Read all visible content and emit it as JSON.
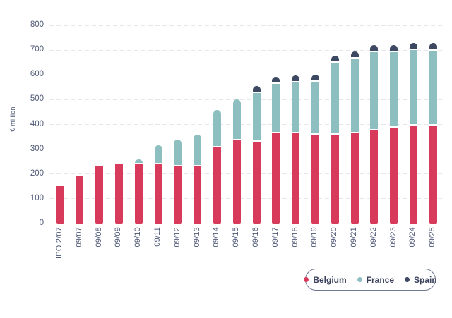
{
  "chart_data": {
    "type": "bar",
    "stacked": true,
    "title": "",
    "xlabel": "",
    "ylabel": "€ million",
    "ylim": [
      0,
      800
    ],
    "yticks": [
      0,
      100,
      200,
      300,
      400,
      500,
      600,
      700,
      800
    ],
    "grid": "horizontal-dashed",
    "legend_position": "bottom-right",
    "categories": [
      "IPO 2/07",
      "09/07",
      "09/08",
      "09/09",
      "09/10",
      "09/11",
      "09/12",
      "09/13",
      "09/14",
      "09/15",
      "09/16",
      "09/17",
      "09/18",
      "09/19",
      "09/20",
      "09/21",
      "09/22",
      "09/23",
      "09/24",
      "09/25"
    ],
    "series": [
      {
        "name": "Belgium",
        "color": "#D83A5B",
        "values": [
          150,
          190,
          232,
          240,
          240,
          238,
          230,
          232,
          308,
          336,
          330,
          365,
          363,
          360,
          358,
          365,
          375,
          388,
          395,
          395
        ]
      },
      {
        "name": "France",
        "color": "#8EBFC0",
        "values": [
          0,
          0,
          0,
          0,
          20,
          77,
          108,
          126,
          150,
          166,
          198,
          200,
          205,
          212,
          292,
          300,
          317,
          303,
          304,
          303
        ]
      },
      {
        "name": "Spain",
        "color": "#3D4963",
        "values": [
          0,
          0,
          0,
          0,
          0,
          0,
          0,
          0,
          0,
          0,
          27,
          28,
          30,
          30,
          28,
          30,
          28,
          29,
          31,
          30
        ]
      }
    ],
    "stack_totals": [
      150,
      190,
      232,
      240,
      260,
      315,
      338,
      358,
      458,
      502,
      555,
      593,
      598,
      602,
      678,
      695,
      720,
      720,
      730,
      728
    ]
  },
  "colors": {
    "text": "#4E5877",
    "gridline": "#E6E7EC",
    "legend_border": "#6E7890",
    "legend_text": "#3A415C",
    "background": "#FFFFFF"
  }
}
